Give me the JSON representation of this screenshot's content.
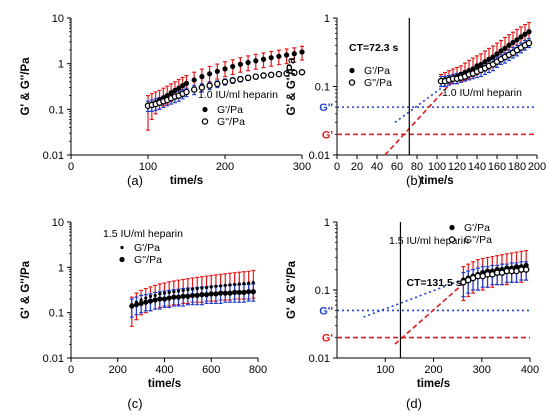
{
  "chart_data": [
    {
      "panel_label": "(a)",
      "type": "scatter",
      "xlabel": "time/s",
      "ylabel": "G' & G''/Pa",
      "xlim": [
        0,
        300
      ],
      "x_ticks": [
        0,
        100,
        200,
        300
      ],
      "y_scale": "log",
      "ylim": [
        0.01,
        10
      ],
      "y_tick_labels": [
        "0.01",
        "0.1",
        "1",
        "10"
      ],
      "annotation": "1.0 IU/ml heparin",
      "legend": "right",
      "series": [
        {
          "name": "G'/Pa",
          "marker": "filled-circle",
          "error_color": "#e41a1c",
          "x": [
            100,
            105,
            110,
            115,
            120,
            125,
            130,
            135,
            140,
            145,
            150,
            160,
            170,
            180,
            190,
            200,
            210,
            220,
            230,
            240,
            250,
            260,
            270,
            280,
            290,
            300
          ],
          "y": [
            0.12,
            0.13,
            0.14,
            0.16,
            0.18,
            0.2,
            0.23,
            0.26,
            0.29,
            0.33,
            0.37,
            0.44,
            0.52,
            0.6,
            0.68,
            0.77,
            0.87,
            0.97,
            1.06,
            1.15,
            1.25,
            1.35,
            1.45,
            1.55,
            1.65,
            1.8
          ],
          "y_upper": [
            0.2,
            0.22,
            0.24,
            0.26,
            0.29,
            0.32,
            0.36,
            0.4,
            0.45,
            0.5,
            0.55,
            0.65,
            0.76,
            0.87,
            0.98,
            1.1,
            1.22,
            1.35,
            1.48,
            1.6,
            1.72,
            1.85,
            1.98,
            2.1,
            2.22,
            2.4
          ],
          "y_lower": [
            0.035,
            0.06,
            0.08,
            0.1,
            0.12,
            0.13,
            0.15,
            0.17,
            0.19,
            0.22,
            0.25,
            0.3,
            0.35,
            0.4,
            0.46,
            0.52,
            0.58,
            0.65,
            0.7,
            0.76,
            0.82,
            0.88,
            0.95,
            1.0,
            1.08,
            1.2
          ]
        },
        {
          "name": "G''/Pa",
          "marker": "open-circle",
          "error_color": "#1f3fd1",
          "x": [
            100,
            105,
            110,
            115,
            120,
            125,
            130,
            135,
            140,
            145,
            150,
            160,
            170,
            180,
            190,
            200,
            210,
            220,
            230,
            240,
            250,
            260,
            270,
            280,
            290,
            300
          ],
          "y": [
            0.12,
            0.125,
            0.13,
            0.14,
            0.15,
            0.16,
            0.175,
            0.19,
            0.2,
            0.22,
            0.24,
            0.27,
            0.3,
            0.33,
            0.36,
            0.4,
            0.43,
            0.46,
            0.49,
            0.52,
            0.55,
            0.57,
            0.59,
            0.61,
            0.63,
            0.65
          ],
          "y_upper": [
            0.15,
            0.16,
            0.17,
            0.18,
            0.19,
            0.2,
            0.22,
            0.24,
            0.25,
            0.27,
            0.29,
            0.33,
            0.36,
            0.39,
            0.42,
            0.46,
            0.49,
            0.52,
            0.55,
            0.58,
            0.61,
            0.63,
            0.65,
            0.67,
            0.69,
            0.72
          ],
          "y_lower": [
            0.09,
            0.09,
            0.095,
            0.1,
            0.11,
            0.12,
            0.13,
            0.14,
            0.15,
            0.17,
            0.19,
            0.21,
            0.24,
            0.27,
            0.3,
            0.34,
            0.37,
            0.4,
            0.43,
            0.46,
            0.49,
            0.51,
            0.53,
            0.55,
            0.57,
            0.59
          ]
        }
      ]
    },
    {
      "panel_label": "(b)",
      "type": "scatter",
      "xlabel": "time/s",
      "ylabel": "G' & G''/Pa",
      "xlim": [
        0,
        200
      ],
      "x_ticks": [
        0,
        20,
        40,
        60,
        80,
        100,
        120,
        140,
        160,
        180,
        200
      ],
      "y_scale": "log",
      "ylim": [
        0.01,
        1
      ],
      "y_tick_labels": [
        "0.01",
        "0.1",
        "1"
      ],
      "annotation": "1.0 IU/ml heparin",
      "ct_label": "CT=72.3 s",
      "ct_value": 72.3,
      "hlines": [
        {
          "label": "G''",
          "y": 0.05,
          "color": "#1f3fd1"
        },
        {
          "label": "G'",
          "y": 0.02,
          "color": "#e41a1c"
        }
      ],
      "trend_lines": [
        {
          "color": "#e41a1c",
          "x": [
            48,
            120
          ],
          "y": [
            0.01,
            0.14
          ]
        },
        {
          "color": "#1f3fd1",
          "x": [
            58,
            120
          ],
          "y": [
            0.03,
            0.14
          ]
        }
      ],
      "legend": "left",
      "series": [
        {
          "name": "G'/Pa",
          "marker": "filled-circle",
          "error_color": "#e41a1c",
          "x": [
            104,
            108,
            112,
            116,
            120,
            124,
            128,
            132,
            136,
            140,
            144,
            148,
            152,
            156,
            160,
            164,
            168,
            172,
            176,
            180,
            184,
            188,
            192
          ],
          "y": [
            0.12,
            0.125,
            0.13,
            0.135,
            0.14,
            0.15,
            0.16,
            0.17,
            0.18,
            0.2,
            0.21,
            0.23,
            0.25,
            0.27,
            0.3,
            0.33,
            0.36,
            0.4,
            0.44,
            0.48,
            0.53,
            0.58,
            0.63
          ],
          "y_upper": [
            0.15,
            0.16,
            0.17,
            0.18,
            0.19,
            0.2,
            0.22,
            0.24,
            0.26,
            0.28,
            0.3,
            0.33,
            0.36,
            0.39,
            0.43,
            0.47,
            0.52,
            0.57,
            0.62,
            0.68,
            0.74,
            0.8,
            0.86
          ],
          "y_lower": [
            0.1,
            0.1,
            0.105,
            0.11,
            0.11,
            0.12,
            0.125,
            0.13,
            0.14,
            0.15,
            0.16,
            0.17,
            0.18,
            0.2,
            0.22,
            0.24,
            0.26,
            0.29,
            0.32,
            0.35,
            0.38,
            0.42,
            0.46
          ]
        },
        {
          "name": "G''/Pa",
          "marker": "open-circle",
          "error_color": "#1f3fd1",
          "x": [
            104,
            108,
            112,
            116,
            120,
            124,
            128,
            132,
            136,
            140,
            144,
            148,
            152,
            156,
            160,
            164,
            168,
            172,
            176,
            180,
            184,
            188,
            192
          ],
          "y": [
            0.12,
            0.12,
            0.125,
            0.13,
            0.13,
            0.135,
            0.14,
            0.15,
            0.155,
            0.165,
            0.175,
            0.185,
            0.2,
            0.21,
            0.23,
            0.25,
            0.27,
            0.29,
            0.31,
            0.34,
            0.37,
            0.4,
            0.43
          ],
          "y_upper": [
            0.14,
            0.14,
            0.145,
            0.15,
            0.155,
            0.16,
            0.17,
            0.18,
            0.19,
            0.2,
            0.21,
            0.22,
            0.24,
            0.25,
            0.27,
            0.29,
            0.31,
            0.34,
            0.37,
            0.4,
            0.43,
            0.47,
            0.5
          ],
          "y_lower": [
            0.1,
            0.1,
            0.105,
            0.11,
            0.11,
            0.115,
            0.12,
            0.125,
            0.13,
            0.135,
            0.14,
            0.15,
            0.16,
            0.17,
            0.19,
            0.21,
            0.22,
            0.24,
            0.26,
            0.28,
            0.31,
            0.34,
            0.37
          ]
        }
      ]
    },
    {
      "panel_label": "(c)",
      "type": "scatter",
      "xlabel": "time/s",
      "ylabel": "G' & G''/Pa",
      "xlim": [
        0,
        800
      ],
      "x_ticks": [
        0,
        200,
        400,
        600,
        800
      ],
      "y_scale": "log",
      "ylim": [
        0.01,
        10
      ],
      "y_tick_labels": [
        "0.01",
        "0.1",
        "1",
        "10"
      ],
      "annotation": "1.5 IU/ml heparin",
      "legend": "top",
      "series": [
        {
          "name": "G'/Pa",
          "marker": "small-filled-circle",
          "error_color": "#e41a1c",
          "x": [
            260,
            280,
            300,
            320,
            340,
            360,
            380,
            400,
            420,
            440,
            460,
            480,
            500,
            520,
            540,
            560,
            580,
            600,
            620,
            640,
            660,
            680,
            700,
            720,
            740,
            760,
            780
          ],
          "y": [
            0.15,
            0.17,
            0.19,
            0.21,
            0.23,
            0.24,
            0.26,
            0.27,
            0.28,
            0.29,
            0.3,
            0.31,
            0.32,
            0.33,
            0.34,
            0.35,
            0.36,
            0.37,
            0.38,
            0.39,
            0.4,
            0.41,
            0.42,
            0.43,
            0.44,
            0.45,
            0.46
          ],
          "y_upper": [
            0.22,
            0.27,
            0.31,
            0.34,
            0.37,
            0.4,
            0.43,
            0.45,
            0.48,
            0.5,
            0.52,
            0.54,
            0.56,
            0.58,
            0.6,
            0.62,
            0.64,
            0.66,
            0.68,
            0.7,
            0.72,
            0.74,
            0.76,
            0.78,
            0.8,
            0.82,
            0.85
          ],
          "y_lower": [
            0.05,
            0.07,
            0.09,
            0.1,
            0.11,
            0.12,
            0.13,
            0.14,
            0.14,
            0.15,
            0.15,
            0.16,
            0.16,
            0.17,
            0.17,
            0.17,
            0.18,
            0.18,
            0.18,
            0.19,
            0.19,
            0.19,
            0.2,
            0.2,
            0.2,
            0.2,
            0.21
          ]
        },
        {
          "name": "G''/Pa",
          "marker": "filled-circle",
          "error_color": "#1f3fd1",
          "x": [
            260,
            280,
            300,
            320,
            340,
            360,
            380,
            400,
            420,
            440,
            460,
            480,
            500,
            520,
            540,
            560,
            580,
            600,
            620,
            640,
            660,
            680,
            700,
            720,
            740,
            760,
            780
          ],
          "y": [
            0.14,
            0.15,
            0.16,
            0.17,
            0.18,
            0.19,
            0.2,
            0.2,
            0.21,
            0.22,
            0.22,
            0.23,
            0.23,
            0.24,
            0.24,
            0.25,
            0.25,
            0.26,
            0.26,
            0.27,
            0.27,
            0.27,
            0.28,
            0.28,
            0.28,
            0.29,
            0.29
          ],
          "y_upper": [
            0.2,
            0.22,
            0.24,
            0.25,
            0.26,
            0.28,
            0.29,
            0.3,
            0.31,
            0.32,
            0.33,
            0.34,
            0.35,
            0.35,
            0.36,
            0.37,
            0.37,
            0.38,
            0.39,
            0.39,
            0.4,
            0.4,
            0.41,
            0.41,
            0.42,
            0.42,
            0.43
          ],
          "y_lower": [
            0.08,
            0.09,
            0.1,
            0.11,
            0.11,
            0.12,
            0.12,
            0.13,
            0.13,
            0.14,
            0.14,
            0.14,
            0.15,
            0.15,
            0.15,
            0.15,
            0.16,
            0.16,
            0.16,
            0.16,
            0.17,
            0.17,
            0.17,
            0.17,
            0.17,
            0.18,
            0.18
          ]
        }
      ]
    },
    {
      "panel_label": "(d)",
      "type": "scatter",
      "xlabel": "time/s",
      "ylabel": "G' & G''/Pa",
      "xlim": [
        0,
        400
      ],
      "x_ticks": [
        100,
        200,
        300,
        400
      ],
      "y_scale": "log",
      "ylim": [
        0.01,
        1
      ],
      "y_tick_labels": [
        "0.01",
        "0.1",
        "1"
      ],
      "annotation": "1.5 IU/ml heparin",
      "ct_label": "CT=131.5 s",
      "ct_value": 131.5,
      "hlines": [
        {
          "label": "G''",
          "y": 0.05,
          "color": "#1f3fd1"
        },
        {
          "label": "G'",
          "y": 0.02,
          "color": "#e41a1c"
        }
      ],
      "trend_lines": [
        {
          "color": "#e41a1c",
          "x": [
            120,
            270
          ],
          "y": [
            0.016,
            0.14
          ]
        },
        {
          "color": "#1f3fd1",
          "x": [
            55,
            280
          ],
          "y": [
            0.04,
            0.16
          ]
        }
      ],
      "legend": "top-right",
      "series": [
        {
          "name": "G'/Pa",
          "marker": "filled-circle",
          "error_color": "#e41a1c",
          "x": [
            262,
            272,
            282,
            292,
            302,
            312,
            322,
            332,
            342,
            352,
            362,
            372,
            382,
            392
          ],
          "y": [
            0.14,
            0.15,
            0.16,
            0.17,
            0.18,
            0.19,
            0.19,
            0.2,
            0.2,
            0.21,
            0.21,
            0.22,
            0.22,
            0.23
          ],
          "y_upper": [
            0.22,
            0.24,
            0.26,
            0.28,
            0.29,
            0.3,
            0.31,
            0.32,
            0.33,
            0.34,
            0.35,
            0.36,
            0.37,
            0.38
          ],
          "y_lower": [
            0.07,
            0.08,
            0.09,
            0.1,
            0.1,
            0.11,
            0.11,
            0.12,
            0.12,
            0.12,
            0.13,
            0.13,
            0.13,
            0.14
          ]
        },
        {
          "name": "G''/Pa",
          "marker": "open-circle",
          "error_color": "#1f3fd1",
          "x": [
            262,
            272,
            282,
            292,
            302,
            312,
            322,
            332,
            342,
            352,
            362,
            372,
            382,
            392
          ],
          "y": [
            0.13,
            0.14,
            0.15,
            0.16,
            0.16,
            0.17,
            0.17,
            0.18,
            0.18,
            0.19,
            0.19,
            0.19,
            0.2,
            0.2
          ],
          "y_upper": [
            0.18,
            0.19,
            0.2,
            0.21,
            0.22,
            0.22,
            0.23,
            0.23,
            0.24,
            0.24,
            0.25,
            0.25,
            0.26,
            0.26
          ],
          "y_lower": [
            0.08,
            0.09,
            0.1,
            0.1,
            0.11,
            0.11,
            0.12,
            0.12,
            0.12,
            0.13,
            0.13,
            0.13,
            0.14,
            0.14
          ]
        }
      ]
    }
  ]
}
